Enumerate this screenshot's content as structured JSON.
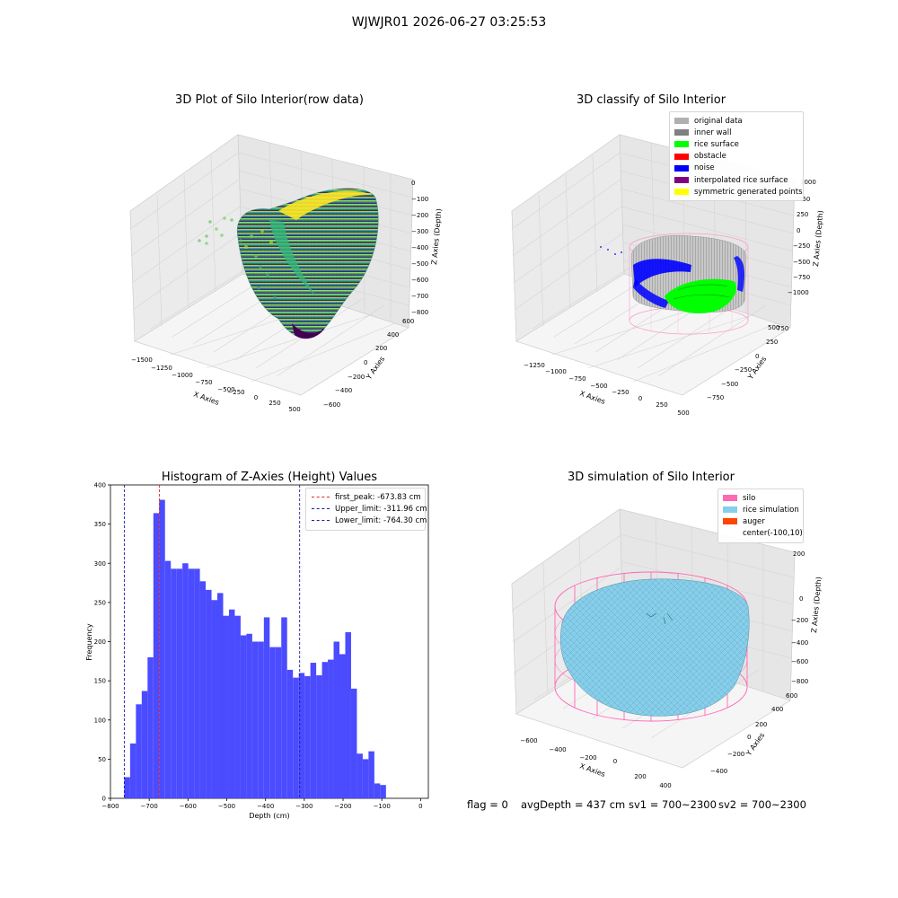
{
  "suptitle": "WJWJR01 2026-06-27 03:25:53",
  "footer": {
    "flag": "flag = 0",
    "avg_depth": "avgDepth = 437 cm",
    "sv1": "sv1 = 700~2300",
    "sv2": "sv2 = 700~2300"
  },
  "colors": {
    "hist_bar": "#4b4bff",
    "first_peak": "#e8251f",
    "limit_lines": "#1a1aa8",
    "silo_wire": "#ff69b4",
    "rice_sim": "#87ceeb",
    "auger": "#ff4500",
    "inner_wall": "#888888",
    "rice_surface": "#00ff00",
    "noise": "#0000ff"
  },
  "plots": [
    {
      "title": "3D Plot of Silo Interior(row data)",
      "type": "3d-scatter",
      "x_label": "X Axies",
      "y_label": "Y Axies",
      "z_label": "Z Axies (Depth)",
      "x_ticks": [
        "−1500",
        "−1250",
        "−1000",
        "−750",
        "−500",
        "−250",
        "0",
        "250",
        "500"
      ],
      "y_ticks": [
        "−600",
        "−400",
        "−200",
        "0",
        "200",
        "400",
        "600"
      ],
      "z_ticks": [
        "0",
        "−100",
        "−200",
        "−300",
        "−400",
        "−500",
        "−600",
        "−700",
        "−800"
      ],
      "colormap": "viridis"
    },
    {
      "title": "3D classify of Silo Interior",
      "type": "3d-scatter",
      "x_label": "X Axies",
      "y_label": "Y Axies",
      "z_label": "Z Axies (Depth)",
      "x_ticks": [
        "−1250",
        "−1000",
        "−750",
        "−500",
        "−250",
        "0",
        "250",
        "500"
      ],
      "y_ticks": [
        "−750",
        "−500",
        "−250",
        "0",
        "250",
        "500",
        "750"
      ],
      "z_ticks": [
        "1000",
        "750",
        "500",
        "250",
        "0",
        "−250",
        "−500",
        "−750",
        "−1000"
      ],
      "legend": [
        {
          "label": "original data",
          "color": "#b0b0b0"
        },
        {
          "label": "inner wall",
          "color": "#808080"
        },
        {
          "label": "rice surface",
          "color": "#00ff00"
        },
        {
          "label": "obstacle",
          "color": "#ff0000"
        },
        {
          "label": "noise",
          "color": "#0000ff"
        },
        {
          "label": "interpolated rice surface",
          "color": "#800080"
        },
        {
          "label": "symmetric generated points",
          "color": "#ffff00"
        }
      ]
    },
    {
      "title": "3D simulation of Silo Interior",
      "type": "3d-surface",
      "x_label": "X Axies",
      "y_label": "Y Axies",
      "z_label": "Z Axies (Depth)",
      "x_ticks": [
        "−600",
        "−400",
        "−200",
        "0",
        "200",
        "400"
      ],
      "y_ticks": [
        "−400",
        "−200",
        "0",
        "200",
        "400",
        "600"
      ],
      "z_ticks": [
        "200",
        "0",
        "−200",
        "−400",
        "−600",
        "−800"
      ],
      "legend": [
        {
          "label": "silo",
          "color": "#ff69b4"
        },
        {
          "label": "rice simulation",
          "color": "#87ceeb"
        },
        {
          "label": "auger",
          "color": "#ff4500"
        },
        {
          "label": "center(-100,10)",
          "color": ""
        }
      ]
    }
  ],
  "chart_data": {
    "type": "bar",
    "title": "Histogram of Z-Axies (Height) Values",
    "xlabel": "Depth (cm)",
    "ylabel": "Frequency",
    "xlim": [
      -800,
      20
    ],
    "ylim": [
      0,
      400
    ],
    "x_ticks": [
      -800,
      -700,
      -600,
      -500,
      -400,
      -300,
      -200,
      -100,
      0
    ],
    "y_ticks": [
      0,
      50,
      100,
      150,
      200,
      250,
      300,
      350,
      400
    ],
    "bin_start": -764.3,
    "bin_width": 15.0,
    "values": [
      27,
      70,
      120,
      137,
      180,
      364,
      381,
      303,
      293,
      293,
      300,
      293,
      293,
      277,
      266,
      253,
      262,
      233,
      241,
      233,
      208,
      210,
      200,
      200,
      231,
      193,
      193,
      231,
      164,
      154,
      160,
      156,
      173,
      157,
      174,
      177,
      200,
      184,
      212,
      140,
      57,
      50,
      60,
      19,
      17
    ],
    "lines": [
      {
        "label": "first_peak: -673.83 cm",
        "x": -673.83,
        "style": "dashed",
        "color": "#e8251f"
      },
      {
        "label": "Upper_limit: -311.96 cm",
        "x": -311.96,
        "style": "dashed",
        "color": "#1a1aa8"
      },
      {
        "label": "Lower_limit: -764.30 cm",
        "x": -764.3,
        "style": "dashed",
        "color": "#1a1aa8"
      }
    ],
    "legend_position": "upper right"
  }
}
